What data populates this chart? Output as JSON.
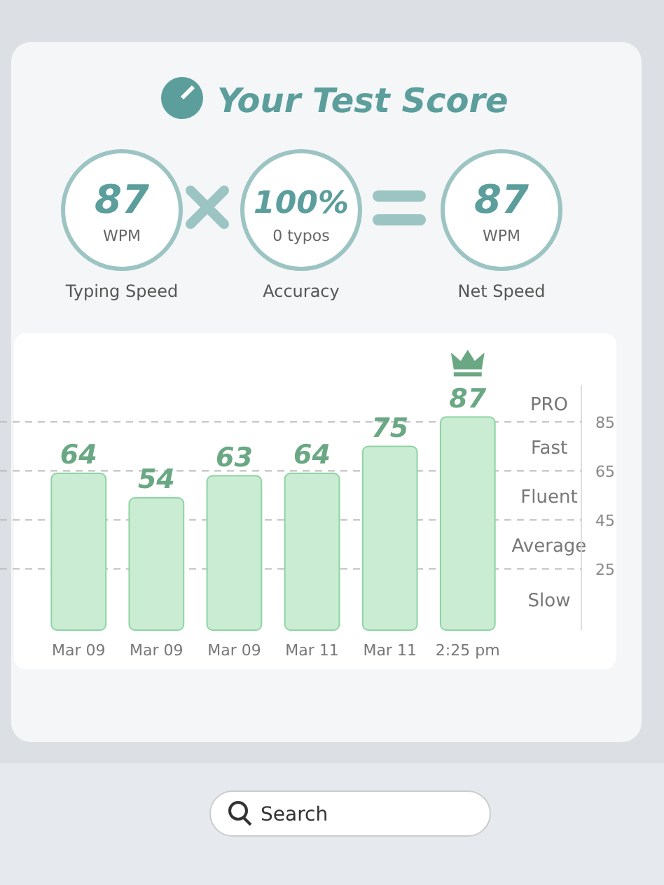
{
  "chart_data": {
    "type": "bar",
    "title": "Your Test Score",
    "categories": [
      "Mar 09",
      "Mar 09",
      "Mar 09",
      "Mar 11",
      "Mar 11",
      "2:25 pm"
    ],
    "values": [
      64,
      54,
      63,
      64,
      75,
      87
    ],
    "color": "#c9ecd3",
    "data_labels": true,
    "ylim": [
      0,
      100
    ],
    "yticks": [
      25,
      45,
      65,
      85
    ],
    "grid": "y",
    "line_style": "dashed",
    "annotations": [
      "87",
      "WPM",
      "Typing Speed",
      "100%",
      "0 typos",
      "Accuracy",
      "87",
      "WPM",
      "Net Speed",
      "Search",
      "Slow",
      "Average",
      "Fluent",
      "Fast",
      "PRO"
    ]
  }
}
